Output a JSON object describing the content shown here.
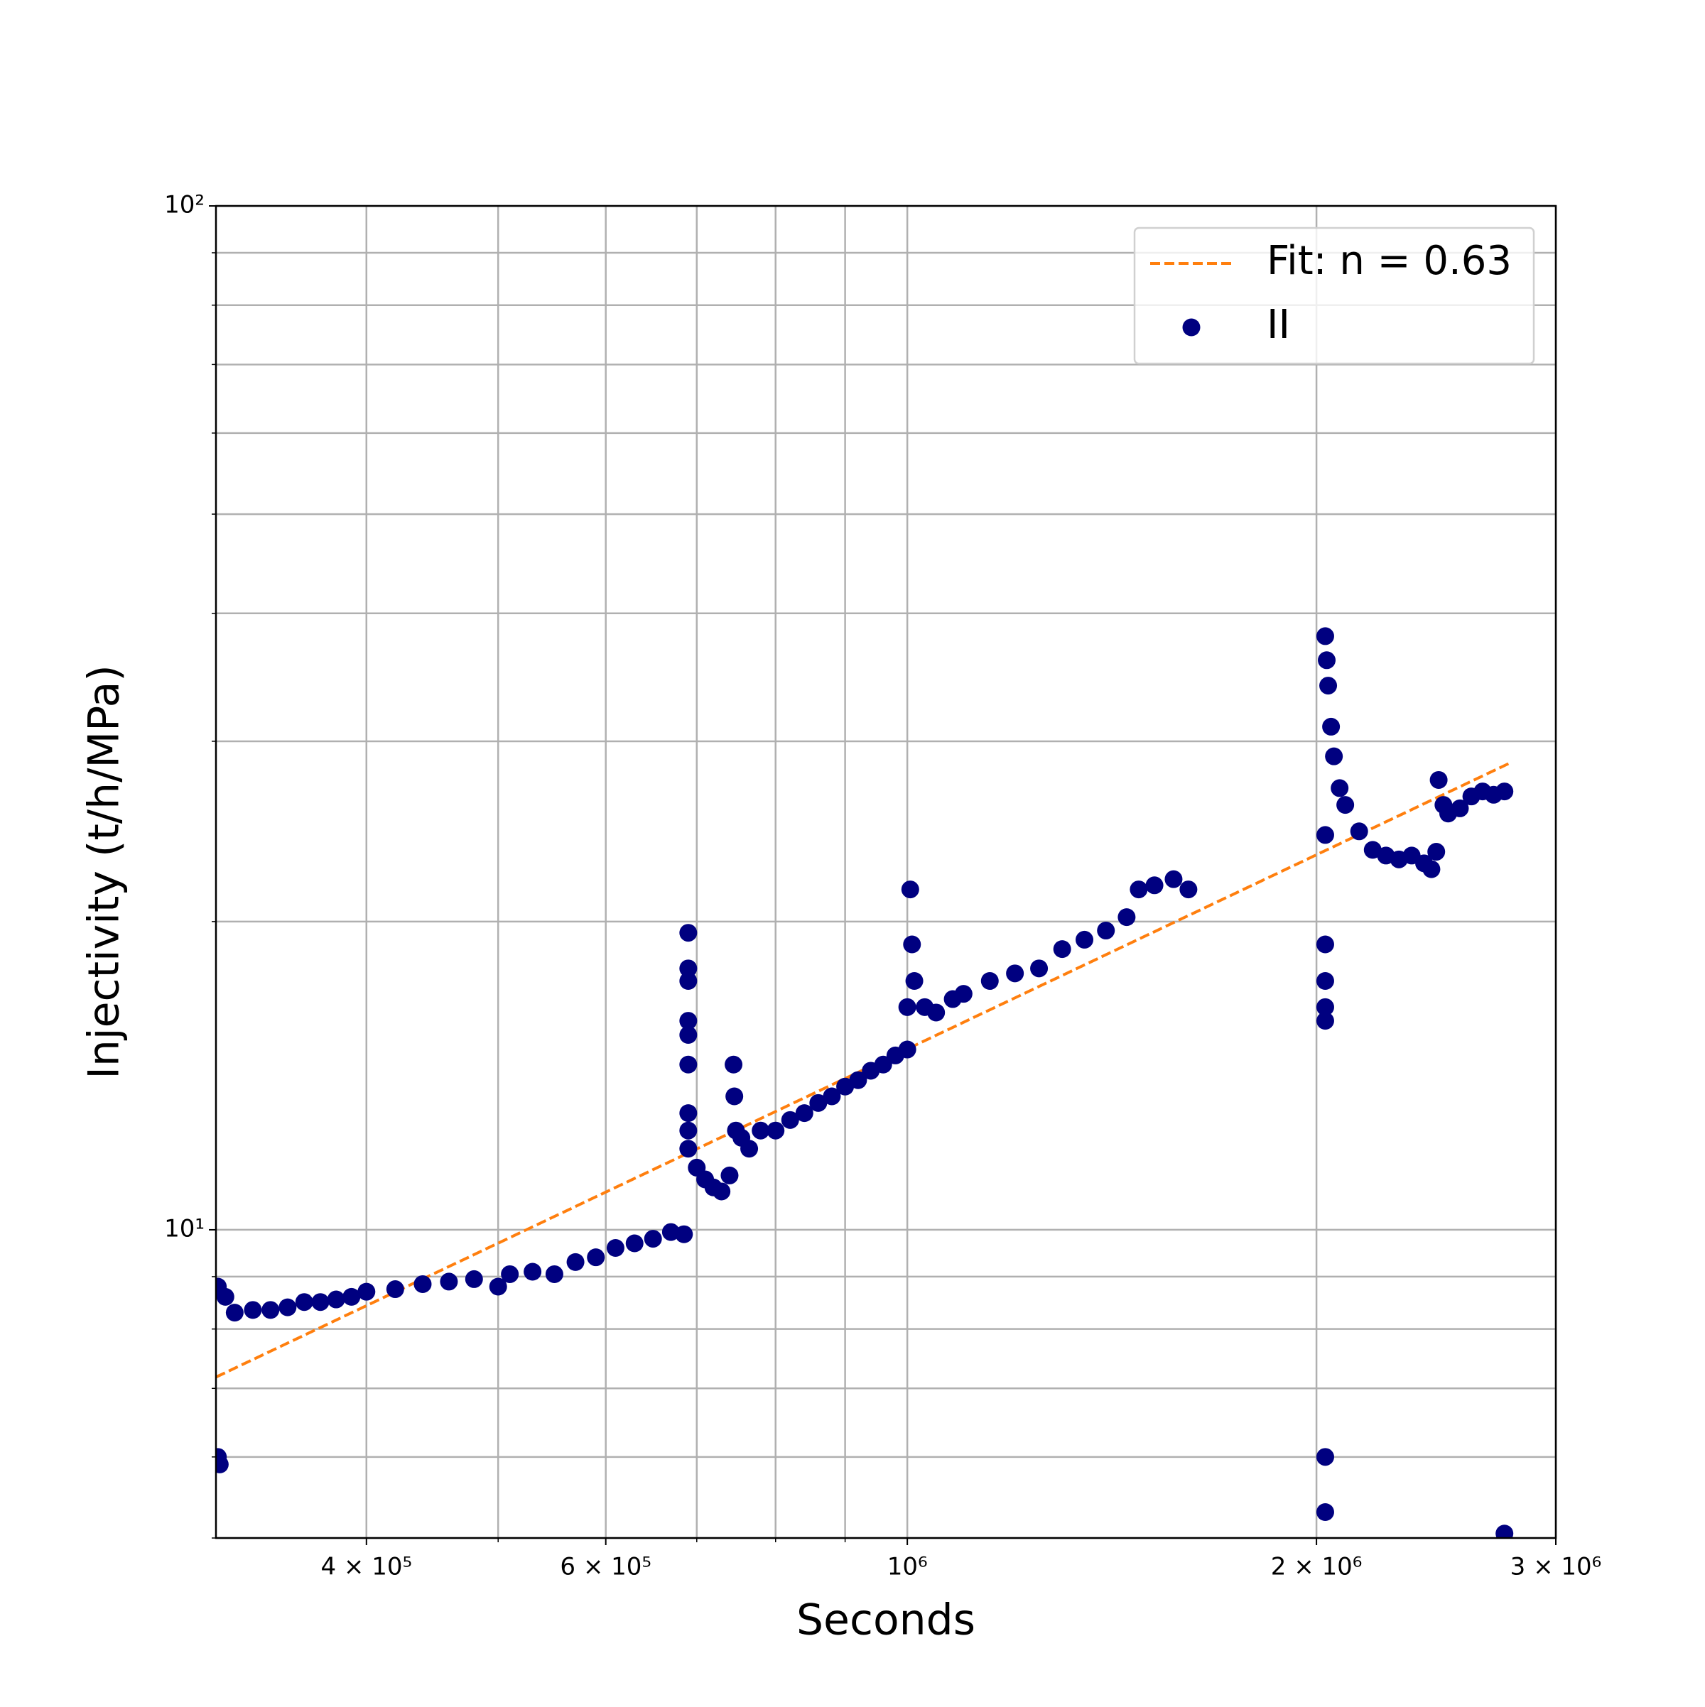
{
  "chart_data": {
    "type": "scatter",
    "xlabel": "Seconds",
    "ylabel": "Injectivity (t/h/MPa)",
    "xscale": "log",
    "yscale": "log",
    "grid": true,
    "legend": "upper right",
    "xlim": [
      310000,
      3000000
    ],
    "ylim": [
      5,
      100
    ],
    "xticks": [
      {
        "value": 400000,
        "label": "4 × 10⁵"
      },
      {
        "value": 600000,
        "label": "6 × 10⁵"
      },
      {
        "value": 1000000,
        "label": "10⁶"
      },
      {
        "value": 2000000,
        "label": "2 × 10⁶"
      },
      {
        "value": 3000000,
        "label": "3 × 10⁶"
      }
    ],
    "xminor_ticks": [
      500000,
      700000,
      800000,
      900000
    ],
    "yticks": [
      {
        "value": 10,
        "label": "10¹"
      },
      {
        "value": 100,
        "label": "10²"
      }
    ],
    "yminor_ticks": [
      5,
      6,
      7,
      8,
      9,
      20,
      30,
      40,
      50,
      60,
      70,
      80,
      90
    ],
    "series": [
      {
        "name": "Fit: n = 0.63",
        "color": "#ff7f0e",
        "style": "dashed",
        "x": [
          310000,
          2780000
        ],
        "values": [
          7.18,
          28.6
        ]
      },
      {
        "name": "II",
        "color": "#000080",
        "style": "markers",
        "x": [
          311000,
          312000,
          311000,
          315000,
          320000,
          330000,
          340000,
          350000,
          360000,
          370000,
          380000,
          390000,
          400000,
          420000,
          440000,
          460000,
          480000,
          500000,
          510000,
          530000,
          550000,
          570000,
          590000,
          610000,
          630000,
          650000,
          670000,
          685000,
          690000,
          690000,
          690000,
          690000,
          690000,
          690000,
          690000,
          690000,
          690000,
          700000,
          710000,
          720000,
          730000,
          740000,
          745000,
          746000,
          748000,
          755000,
          765000,
          780000,
          800000,
          820000,
          840000,
          860000,
          880000,
          900000,
          920000,
          940000,
          960000,
          980000,
          1000000,
          1000000,
          1005000,
          1008000,
          1012000,
          1030000,
          1050000,
          1080000,
          1100000,
          1150000,
          1200000,
          1250000,
          1300000,
          1350000,
          1400000,
          1450000,
          1480000,
          1520000,
          1570000,
          1610000,
          2030000,
          2030000,
          2030000,
          2030000,
          2030000,
          2030000,
          2030000,
          2030000,
          2035000,
          2040000,
          2050000,
          2060000,
          2080000,
          2100000,
          2150000,
          2200000,
          2250000,
          2300000,
          2350000,
          2400000,
          2430000,
          2450000,
          2460000,
          2480000,
          2500000,
          2550000,
          2600000,
          2650000,
          2700000,
          2750000,
          2750000
        ],
        "values": [
          8.8,
          5.9,
          6.0,
          8.6,
          8.3,
          8.35,
          8.35,
          8.4,
          8.5,
          8.5,
          8.55,
          8.6,
          8.7,
          8.75,
          8.85,
          8.9,
          8.95,
          8.8,
          9.05,
          9.1,
          9.05,
          9.3,
          9.4,
          9.6,
          9.7,
          9.8,
          9.95,
          9.9,
          19.5,
          18.0,
          17.5,
          16.0,
          15.5,
          14.5,
          13.0,
          12.5,
          12.0,
          11.5,
          11.2,
          11.0,
          10.9,
          11.3,
          14.5,
          13.5,
          12.5,
          12.3,
          12.0,
          12.5,
          12.5,
          12.8,
          13.0,
          13.3,
          13.5,
          13.8,
          14.0,
          14.3,
          14.5,
          14.8,
          15.0,
          16.5,
          21.5,
          19.0,
          17.5,
          16.5,
          16.3,
          16.8,
          17.0,
          17.5,
          17.8,
          18.0,
          18.8,
          19.2,
          19.6,
          20.2,
          21.5,
          21.7,
          22.0,
          21.5,
          19.0,
          17.5,
          16.5,
          16.0,
          6.0,
          5.3,
          24.3,
          38.0,
          36.0,
          34.0,
          31.0,
          29.0,
          27.0,
          26.0,
          24.5,
          23.5,
          23.2,
          23.0,
          23.2,
          22.8,
          22.5,
          23.4,
          27.5,
          26.0,
          25.5,
          25.8,
          26.5,
          26.8,
          26.6,
          26.8,
          5.05
        ]
      }
    ]
  }
}
